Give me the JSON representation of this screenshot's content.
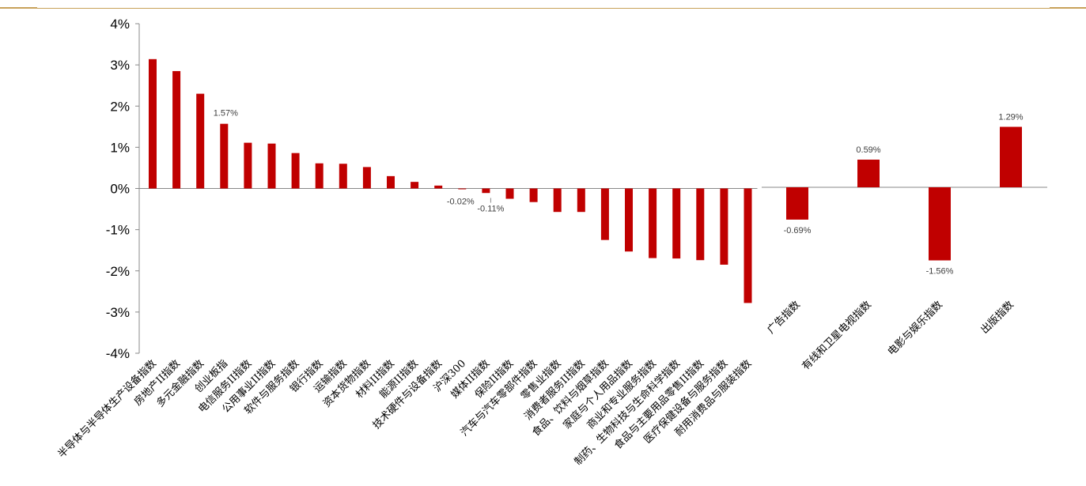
{
  "chart_data": [
    {
      "type": "bar",
      "title": "",
      "xlabel": "",
      "ylabel": "",
      "ylim": [
        -0.04,
        0.04
      ],
      "y_tick_labels": [
        "4%",
        "3%",
        "2%",
        "1%",
        "0%",
        "-1%",
        "-2%",
        "-3%",
        "-4%"
      ],
      "grid": false,
      "bar_color": "#c00000",
      "categories": [
        "半导体与半导体生产设备指数",
        "房地产II指数",
        "多元金融指数",
        "创业板指",
        "电信服务II指数",
        "公用事业II指数",
        "软件与服务指数",
        "银行指数",
        "运输指数",
        "资本货物指数",
        "材料II指数",
        "能源II指数",
        "技术硬件与设备指数",
        "沪深300",
        "媒体II指数",
        "保险II指数",
        "汽车与汽车零部件指数",
        "零售业指数",
        "消费者服务II指数",
        "食品、饮料与烟草指数",
        "家庭与个人用品指数",
        "商业和专业服务指数",
        "制药、生物科技与生命科学指数",
        "食品与主要用品零售II指数",
        "医疗保健设备与服务指数",
        "耐用消费品与服装指数"
      ],
      "values": [
        0.0314,
        0.0285,
        0.023,
        0.0157,
        0.0111,
        0.0109,
        0.0086,
        0.0061,
        0.006,
        0.0052,
        0.003,
        0.0016,
        0.0007,
        -0.0002,
        -0.0011,
        -0.0025,
        -0.0033,
        -0.0057,
        -0.0057,
        -0.0125,
        -0.0153,
        -0.0169,
        -0.017,
        -0.0174,
        -0.0185,
        -0.0278
      ],
      "data_labels": {
        "3": "1.57%",
        "13": "-0.02%",
        "14": "-0.11%"
      }
    },
    {
      "type": "bar",
      "title": "",
      "xlabel": "",
      "ylabel": "",
      "grid": false,
      "bar_color": "#c00000",
      "categories": [
        "广告指数",
        "有线和卫星电视指数",
        "电影与娱乐指数",
        "出版指数"
      ],
      "values": [
        -0.0069,
        0.0059,
        -0.0156,
        0.0129
      ],
      "data_labels": [
        "-0.69%",
        "0.59%",
        "-1.56%",
        "1.29%"
      ]
    }
  ]
}
